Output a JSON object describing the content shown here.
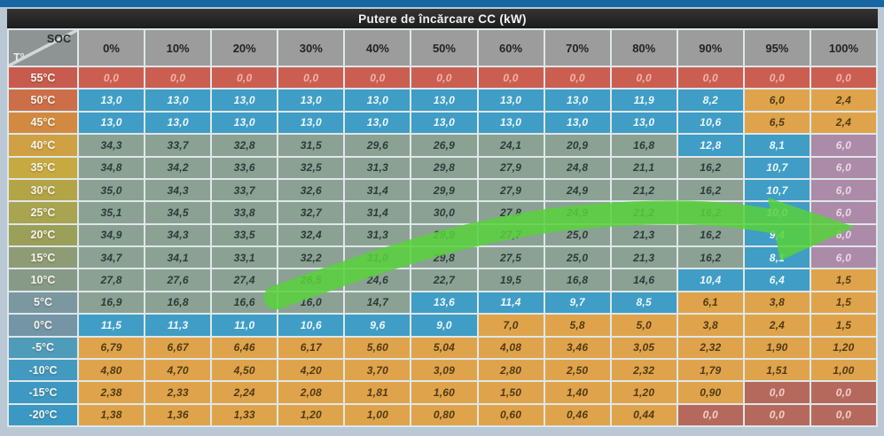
{
  "title": "Putere de încărcare CC (kW)",
  "corner": {
    "soc_label": "SOC",
    "t_label": "T°"
  },
  "columns": [
    "0%",
    "10%",
    "20%",
    "30%",
    "40%",
    "50%",
    "60%",
    "70%",
    "80%",
    "90%",
    "95%",
    "100%"
  ],
  "palette": {
    "T": {
      "bg": "#8ba194",
      "fg": "#2c3b37"
    },
    "B": {
      "bg": "#3f9dc6",
      "fg": "#f0f7fa"
    },
    "O": {
      "bg": "#dfa44b",
      "fg": "#503a15"
    },
    "P": {
      "bg": "#ab8ba8",
      "fg": "#ead9e6"
    },
    "R": {
      "bg": "#ca5e51",
      "fg": "#f2b4aa"
    },
    "M": {
      "bg": "#b5695d",
      "fg": "#f1cfc8"
    }
  },
  "rows": [
    {
      "label": "55°C",
      "label_color": "#c75b4e",
      "colors": "RRRRRRRRRRRR",
      "values": [
        "0,0",
        "0,0",
        "0,0",
        "0,0",
        "0,0",
        "0,0",
        "0,0",
        "0,0",
        "0,0",
        "0,0",
        "0,0",
        "0,0"
      ]
    },
    {
      "label": "50°C",
      "label_color": "#cc6f49",
      "colors": "BBBBBBBBBBOO",
      "values": [
        "13,0",
        "13,0",
        "13,0",
        "13,0",
        "13,0",
        "13,0",
        "13,0",
        "13,0",
        "11,9",
        "8,2",
        "6,0",
        "2,4"
      ]
    },
    {
      "label": "45°C",
      "label_color": "#d28a41",
      "colors": "BBBBBBBBBBOO",
      "values": [
        "13,0",
        "13,0",
        "13,0",
        "13,0",
        "13,0",
        "13,0",
        "13,0",
        "13,0",
        "13,0",
        "10,6",
        "6,5",
        "2,4"
      ]
    },
    {
      "label": "40°C",
      "label_color": "#d0a143",
      "colors": "TTTTTTTTTBBP",
      "values": [
        "34,3",
        "33,7",
        "32,8",
        "31,5",
        "29,6",
        "26,9",
        "24,1",
        "20,9",
        "16,8",
        "12,8",
        "8,1",
        "6,0"
      ]
    },
    {
      "label": "35°C",
      "label_color": "#c6a940",
      "colors": "TTTTTTTTTTBP",
      "values": [
        "34,8",
        "34,2",
        "33,6",
        "32,5",
        "31,3",
        "29,8",
        "27,9",
        "24,8",
        "21,1",
        "16,2",
        "10,7",
        "6,0"
      ]
    },
    {
      "label": "30°C",
      "label_color": "#b3a545",
      "colors": "TTTTTTTTTTBP",
      "values": [
        "35,0",
        "34,3",
        "33,7",
        "32,6",
        "31,4",
        "29,9",
        "27,9",
        "24,9",
        "21,2",
        "16,2",
        "10,7",
        "6,0"
      ]
    },
    {
      "label": "25°C",
      "label_color": "#a8a44f",
      "colors": "TTTTTTTTTTBP",
      "values": [
        "35,1",
        "34,5",
        "33,8",
        "32,7",
        "31,4",
        "30,0",
        "27,8",
        "24,9",
        "21,2",
        "16,2",
        "10,0",
        "6,0"
      ]
    },
    {
      "label": "20°C",
      "label_color": "#9aa058",
      "colors": "TTTTTTTTTTBP",
      "values": [
        "34,9",
        "34,3",
        "33,5",
        "32,4",
        "31,3",
        "29,9",
        "27,7",
        "25,0",
        "21,3",
        "16,2",
        "9,4",
        "6,0"
      ]
    },
    {
      "label": "15°C",
      "label_color": "#8d9c74",
      "colors": "TTTTTTTTTTBP",
      "values": [
        "34,7",
        "34,1",
        "33,1",
        "32,2",
        "31,0",
        "29,8",
        "27,5",
        "25,0",
        "21,3",
        "16,2",
        "8,1",
        "6,0"
      ]
    },
    {
      "label": "10°C",
      "label_color": "#879a88",
      "colors": "TTTTTTTTTBBO",
      "values": [
        "27,8",
        "27,6",
        "27,4",
        "26,5",
        "24,6",
        "22,7",
        "19,5",
        "16,8",
        "14,6",
        "10,4",
        "6,4",
        "1,5"
      ]
    },
    {
      "label": "5°C",
      "label_color": "#7b97a0",
      "colors": "TTTTTBBBBOOO",
      "values": [
        "16,9",
        "16,8",
        "16,6",
        "16,0",
        "14,7",
        "13,6",
        "11,4",
        "9,7",
        "8,5",
        "6,1",
        "3,8",
        "1,5"
      ]
    },
    {
      "label": "0°C",
      "label_color": "#7495a5",
      "colors": "BBBBBBOOOOOO",
      "values": [
        "11,5",
        "11,3",
        "11,0",
        "10,6",
        "9,6",
        "9,0",
        "7,0",
        "5,8",
        "5,0",
        "3,8",
        "2,4",
        "1,5"
      ]
    },
    {
      "label": "-5°C",
      "label_color": "#4f9cba",
      "colors": "OOOOOOOOOOOO",
      "values": [
        "6,79",
        "6,67",
        "6,46",
        "6,17",
        "5,60",
        "5,04",
        "4,08",
        "3,46",
        "3,05",
        "2,32",
        "1,90",
        "1,20"
      ]
    },
    {
      "label": "-10°C",
      "label_color": "#429ac1",
      "colors": "OOOOOOOOOOOO",
      "values": [
        "4,80",
        "4,70",
        "4,50",
        "4,20",
        "3,70",
        "3,09",
        "2,80",
        "2,50",
        "2,32",
        "1,79",
        "1,51",
        "1,00"
      ]
    },
    {
      "label": "-15°C",
      "label_color": "#3d99c2",
      "colors": "OOOOOOOOOOMM",
      "values": [
        "2,38",
        "2,33",
        "2,24",
        "2,08",
        "1,81",
        "1,60",
        "1,50",
        "1,40",
        "1,20",
        "0,90",
        "0,0",
        "0,0"
      ]
    },
    {
      "label": "-20°C",
      "label_color": "#3b98c3",
      "colors": "OOOOOOOOOMMM",
      "values": [
        "1,38",
        "1,36",
        "1,33",
        "1,20",
        "1,00",
        "0,80",
        "0,60",
        "0,46",
        "0,44",
        "0,0",
        "0,0",
        "0,0"
      ]
    }
  ],
  "annotation": {
    "type": "green-arrow",
    "color": "#58d13c"
  },
  "chart_data": {
    "type": "table",
    "title": "Putere de încărcare CC (kW)",
    "x_axis_label": "SOC",
    "y_axis_label": "T°",
    "columns": [
      "0%",
      "10%",
      "20%",
      "30%",
      "40%",
      "50%",
      "60%",
      "70%",
      "80%",
      "90%",
      "95%",
      "100%"
    ],
    "rows": [
      {
        "temperature": "55°C",
        "values": [
          0.0,
          0.0,
          0.0,
          0.0,
          0.0,
          0.0,
          0.0,
          0.0,
          0.0,
          0.0,
          0.0,
          0.0
        ]
      },
      {
        "temperature": "50°C",
        "values": [
          13.0,
          13.0,
          13.0,
          13.0,
          13.0,
          13.0,
          13.0,
          13.0,
          11.9,
          8.2,
          6.0,
          2.4
        ]
      },
      {
        "temperature": "45°C",
        "values": [
          13.0,
          13.0,
          13.0,
          13.0,
          13.0,
          13.0,
          13.0,
          13.0,
          13.0,
          10.6,
          6.5,
          2.4
        ]
      },
      {
        "temperature": "40°C",
        "values": [
          34.3,
          33.7,
          32.8,
          31.5,
          29.6,
          26.9,
          24.1,
          20.9,
          16.8,
          12.8,
          8.1,
          6.0
        ]
      },
      {
        "temperature": "35°C",
        "values": [
          34.8,
          34.2,
          33.6,
          32.5,
          31.3,
          29.8,
          27.9,
          24.8,
          21.1,
          16.2,
          10.7,
          6.0
        ]
      },
      {
        "temperature": "30°C",
        "values": [
          35.0,
          34.3,
          33.7,
          32.6,
          31.4,
          29.9,
          27.9,
          24.9,
          21.2,
          16.2,
          10.7,
          6.0
        ]
      },
      {
        "temperature": "25°C",
        "values": [
          35.1,
          34.5,
          33.8,
          32.7,
          31.4,
          30.0,
          27.8,
          24.9,
          21.2,
          16.2,
          10.0,
          6.0
        ]
      },
      {
        "temperature": "20°C",
        "values": [
          34.9,
          34.3,
          33.5,
          32.4,
          31.3,
          29.9,
          27.7,
          25.0,
          21.3,
          16.2,
          9.4,
          6.0
        ]
      },
      {
        "temperature": "15°C",
        "values": [
          34.7,
          34.1,
          33.1,
          32.2,
          31.0,
          29.8,
          27.5,
          25.0,
          21.3,
          16.2,
          8.1,
          6.0
        ]
      },
      {
        "temperature": "10°C",
        "values": [
          27.8,
          27.6,
          27.4,
          26.5,
          24.6,
          22.7,
          19.5,
          16.8,
          14.6,
          10.4,
          6.4,
          1.5
        ]
      },
      {
        "temperature": "5°C",
        "values": [
          16.9,
          16.8,
          16.6,
          16.0,
          14.7,
          13.6,
          11.4,
          9.7,
          8.5,
          6.1,
          3.8,
          1.5
        ]
      },
      {
        "temperature": "0°C",
        "values": [
          11.5,
          11.3,
          11.0,
          10.6,
          9.6,
          9.0,
          7.0,
          5.8,
          5.0,
          3.8,
          2.4,
          1.5
        ]
      },
      {
        "temperature": "-5°C",
        "values": [
          6.79,
          6.67,
          6.46,
          6.17,
          5.6,
          5.04,
          4.08,
          3.46,
          3.05,
          2.32,
          1.9,
          1.2
        ]
      },
      {
        "temperature": "-10°C",
        "values": [
          4.8,
          4.7,
          4.5,
          4.2,
          3.7,
          3.09,
          2.8,
          2.5,
          2.32,
          1.79,
          1.51,
          1.0
        ]
      },
      {
        "temperature": "-15°C",
        "values": [
          2.38,
          2.33,
          2.24,
          2.08,
          1.81,
          1.6,
          1.5,
          1.4,
          1.2,
          0.9,
          0.0,
          0.0
        ]
      },
      {
        "temperature": "-20°C",
        "values": [
          1.38,
          1.36,
          1.33,
          1.2,
          1.0,
          0.8,
          0.6,
          0.46,
          0.44,
          0.0,
          0.0,
          0.0
        ]
      }
    ]
  }
}
